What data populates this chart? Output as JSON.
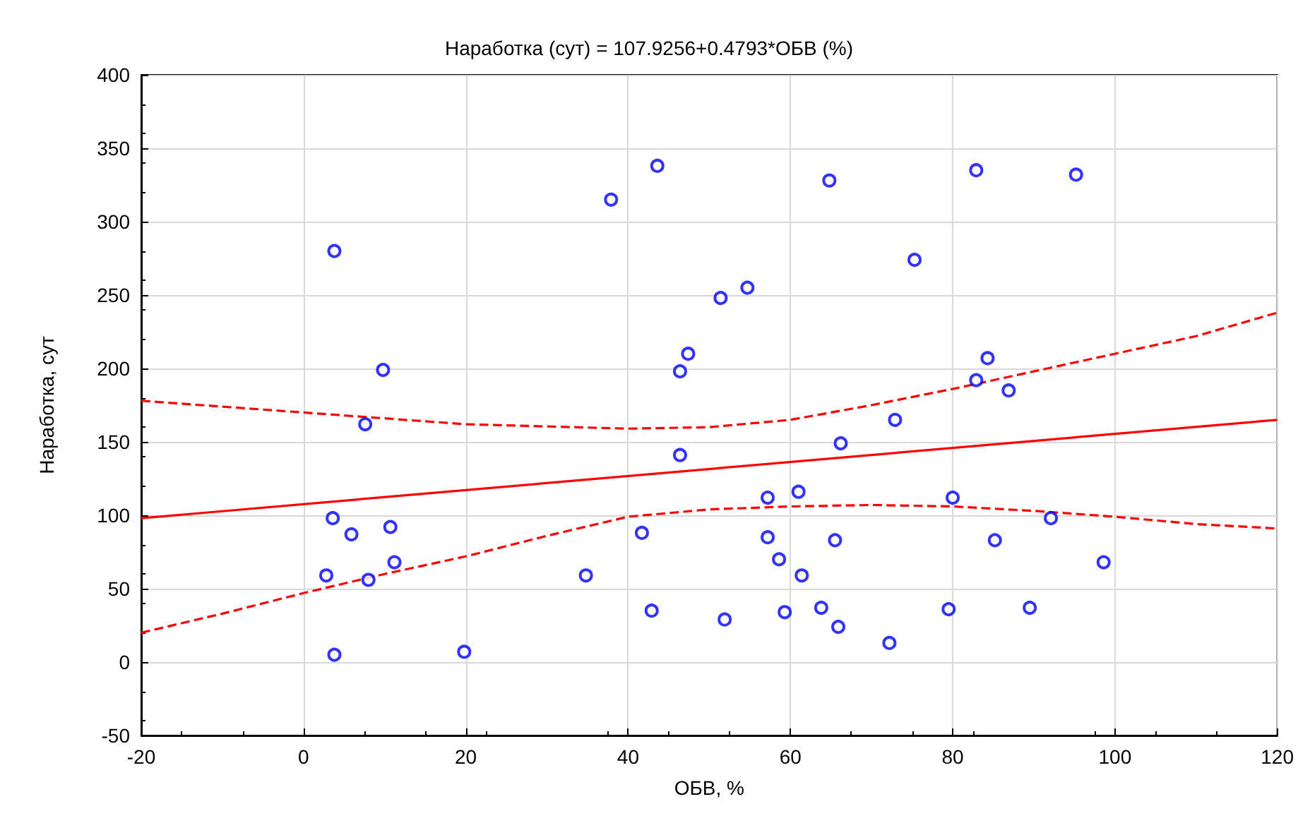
{
  "chart_data": {
    "type": "scatter",
    "title": "Наработка (сут) = 107.9256+0.4793*ОБВ (%)",
    "xlabel": "ОБВ, %",
    "ylabel": "Наработка, сут",
    "xlim": [
      -20,
      120
    ],
    "xticks": [
      -20,
      0,
      20,
      40,
      60,
      80,
      100,
      120
    ],
    "ylim": [
      -50,
      400
    ],
    "yticks": [
      -50,
      0,
      50,
      100,
      150,
      200,
      250,
      300,
      350,
      400
    ],
    "grid": true,
    "series": [
      {
        "color": "#0000ff",
        "marker": "circle",
        "x": [
          3.8,
          3.8,
          3.6,
          2.8,
          5.9,
          7.6,
          8.0,
          9.8,
          10.7,
          11.2,
          19.8,
          34.8,
          37.9,
          43.6,
          41.7,
          42.9,
          46.4,
          47.4,
          46.4,
          51.4,
          54.7,
          51.9,
          57.2,
          57.2,
          58.6,
          59.3,
          61.0,
          61.4,
          64.8,
          63.8,
          65.5,
          65.9,
          66.2,
          75.3,
          72.9,
          72.2,
          82.9,
          82.9,
          84.3,
          79.5,
          80.0,
          85.2,
          86.9,
          92.1,
          95.2,
          89.5,
          98.6
        ],
        "values": [
          280,
          5,
          98,
          59,
          87,
          162,
          56,
          199,
          92,
          68,
          7,
          59,
          315,
          338,
          88,
          35,
          198,
          210,
          141,
          248,
          255,
          29,
          112,
          85,
          70,
          34,
          116,
          59,
          328,
          37,
          83,
          24,
          149,
          274,
          165,
          13,
          335,
          192,
          207,
          36,
          112,
          83,
          185,
          98,
          332,
          37,
          68
        ]
      },
      {
        "type": "line",
        "color": "#ff0000",
        "marker": "none",
        "line_style": "solid",
        "x": [
          -20,
          120
        ],
        "values": [
          98,
          165
        ]
      },
      {
        "type": "line",
        "color": "#ff0000",
        "marker": "none",
        "line_style": "dashed",
        "x": [
          -20,
          0,
          20,
          40,
          50,
          60,
          70,
          80,
          90,
          100,
          110,
          120
        ],
        "values": [
          178,
          170,
          162,
          159,
          160,
          165,
          175,
          186,
          198,
          210,
          222,
          238
        ]
      },
      {
        "type": "line",
        "color": "#ff0000",
        "marker": "none",
        "line_style": "dashed",
        "x": [
          -20,
          -10,
          0,
          10,
          20,
          30,
          40,
          50,
          60,
          70,
          80,
          90,
          100,
          110,
          120
        ],
        "values": [
          20,
          33,
          47,
          60,
          72,
          86,
          99,
          104,
          106,
          107,
          106,
          103,
          99,
          94,
          91
        ]
      }
    ]
  }
}
